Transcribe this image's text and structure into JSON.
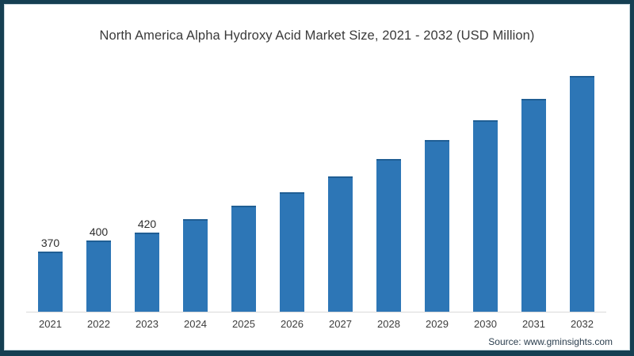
{
  "chart_data": {
    "type": "bar",
    "title": "North America Alpha Hydroxy Acid Market Size, 2021 - 2032 (USD Million)",
    "xlabel": "",
    "ylabel": "",
    "categories": [
      "2021",
      "2022",
      "2023",
      "2024",
      "2025",
      "2026",
      "2027",
      "2028",
      "2029",
      "2030",
      "2031",
      "2032"
    ],
    "values": [
      370,
      400,
      420,
      455,
      490,
      525,
      565,
      610,
      660,
      710,
      765,
      825
    ],
    "data_labels": [
      "370",
      "400",
      "420",
      "",
      "",
      "",
      "",
      "",
      "",
      "",
      "",
      ""
    ],
    "ylim": [
      215,
      850
    ],
    "grid": "off",
    "legend": "none",
    "bar_color": "#2d76b6",
    "bar_top_color": "#1f5e94",
    "axis_line_color": "#d9d9d9",
    "frame_color": "#153f52"
  },
  "source": {
    "label": "Source: www.gminsights.com"
  }
}
